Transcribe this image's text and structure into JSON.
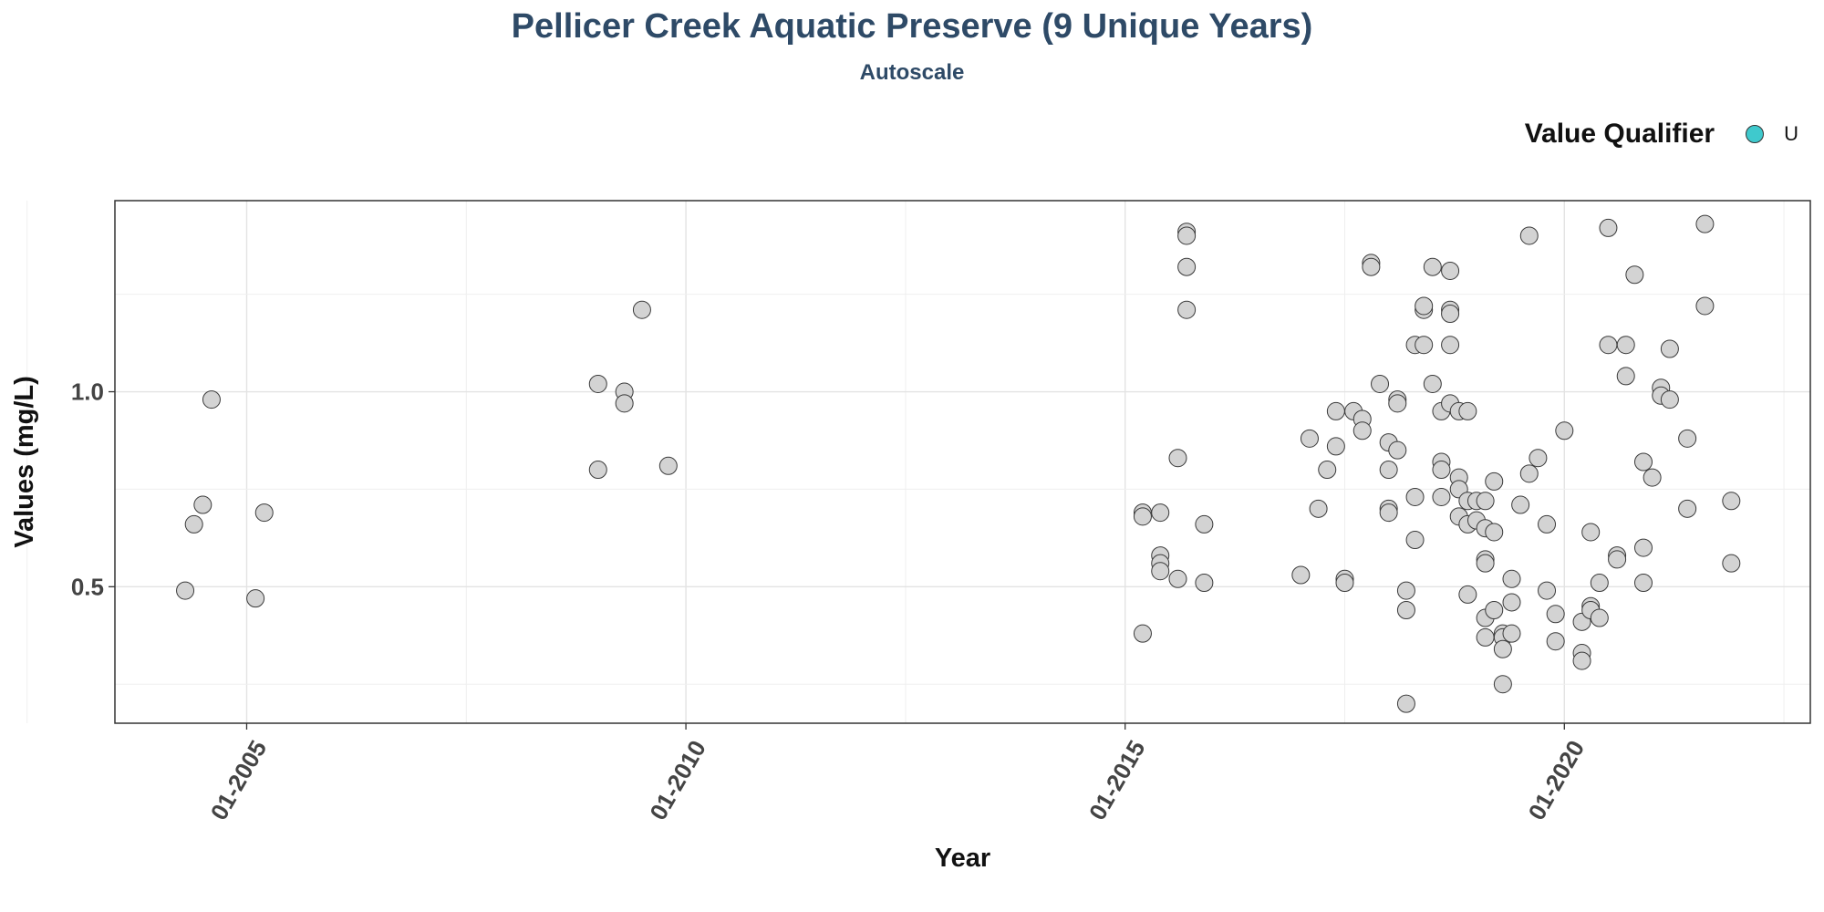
{
  "chart_data": {
    "type": "scatter",
    "title": "Pellicer Creek Aquatic Preserve (9 Unique Years)",
    "subtitle": "Autoscale",
    "xlabel": "Year",
    "ylabel": "Values (mg/L)",
    "x_ticks": [
      "01-2005",
      "01-2010",
      "01-2015",
      "01-2020"
    ],
    "x_tick_values": [
      2005.0,
      2010.0,
      2015.0,
      2020.0
    ],
    "y_ticks": [
      "0.5",
      "1.0"
    ],
    "y_tick_values": [
      0.5,
      1.0
    ],
    "xlim": [
      2003.5,
      2022.8
    ],
    "ylim": [
      0.15,
      1.49
    ],
    "grid": true,
    "legend": {
      "title": "Value Qualifier",
      "position": "top-right",
      "entries": [
        {
          "label": "U",
          "color": "#3fc9cd"
        }
      ]
    },
    "point_color": "#d3d3d3",
    "point_edge_color": "#3a3a3a",
    "points": [
      [
        2004.3,
        0.49
      ],
      [
        2004.4,
        0.66
      ],
      [
        2004.5,
        0.71
      ],
      [
        2004.6,
        0.98
      ],
      [
        2005.1,
        0.47
      ],
      [
        2005.2,
        0.69
      ],
      [
        2009.0,
        1.02
      ],
      [
        2009.0,
        0.8
      ],
      [
        2009.3,
        1.0
      ],
      [
        2009.3,
        0.97
      ],
      [
        2009.5,
        1.21
      ],
      [
        2009.8,
        0.81
      ],
      [
        2015.2,
        0.69
      ],
      [
        2015.2,
        0.68
      ],
      [
        2015.2,
        0.38
      ],
      [
        2015.4,
        0.69
      ],
      [
        2015.4,
        0.58
      ],
      [
        2015.4,
        0.56
      ],
      [
        2015.4,
        0.54
      ],
      [
        2015.6,
        0.83
      ],
      [
        2015.6,
        0.52
      ],
      [
        2015.7,
        1.41
      ],
      [
        2015.7,
        1.4
      ],
      [
        2015.7,
        1.32
      ],
      [
        2015.7,
        1.21
      ],
      [
        2015.9,
        0.66
      ],
      [
        2015.9,
        0.51
      ],
      [
        2017.0,
        0.53
      ],
      [
        2017.1,
        0.88
      ],
      [
        2017.2,
        0.7
      ],
      [
        2017.3,
        0.8
      ],
      [
        2017.4,
        0.86
      ],
      [
        2017.4,
        0.95
      ],
      [
        2017.5,
        0.52
      ],
      [
        2017.5,
        0.51
      ],
      [
        2017.6,
        0.95
      ],
      [
        2017.7,
        0.93
      ],
      [
        2017.7,
        0.9
      ],
      [
        2017.8,
        1.33
      ],
      [
        2017.8,
        1.32
      ],
      [
        2017.9,
        1.02
      ],
      [
        2018.0,
        0.87
      ],
      [
        2018.0,
        0.8
      ],
      [
        2018.0,
        0.7
      ],
      [
        2018.0,
        0.69
      ],
      [
        2018.1,
        0.98
      ],
      [
        2018.1,
        0.97
      ],
      [
        2018.1,
        0.85
      ],
      [
        2018.2,
        0.49
      ],
      [
        2018.2,
        0.44
      ],
      [
        2018.2,
        0.2
      ],
      [
        2018.3,
        1.12
      ],
      [
        2018.3,
        0.73
      ],
      [
        2018.3,
        0.62
      ],
      [
        2018.4,
        1.12
      ],
      [
        2018.4,
        1.21
      ],
      [
        2018.4,
        1.22
      ],
      [
        2018.5,
        1.32
      ],
      [
        2018.5,
        1.02
      ],
      [
        2018.6,
        0.95
      ],
      [
        2018.6,
        0.82
      ],
      [
        2018.6,
        0.8
      ],
      [
        2018.6,
        0.73
      ],
      [
        2018.7,
        1.21
      ],
      [
        2018.7,
        1.31
      ],
      [
        2018.7,
        1.2
      ],
      [
        2018.7,
        1.12
      ],
      [
        2018.7,
        0.97
      ],
      [
        2018.8,
        0.95
      ],
      [
        2018.8,
        0.78
      ],
      [
        2018.8,
        0.75
      ],
      [
        2018.8,
        0.68
      ],
      [
        2018.9,
        0.72
      ],
      [
        2018.9,
        0.66
      ],
      [
        2018.9,
        0.48
      ],
      [
        2018.9,
        0.95
      ],
      [
        2019.0,
        0.67
      ],
      [
        2019.0,
        0.72
      ],
      [
        2019.1,
        0.72
      ],
      [
        2019.1,
        0.65
      ],
      [
        2019.1,
        0.57
      ],
      [
        2019.1,
        0.56
      ],
      [
        2019.1,
        0.42
      ],
      [
        2019.1,
        0.37
      ],
      [
        2019.2,
        0.77
      ],
      [
        2019.2,
        0.64
      ],
      [
        2019.2,
        0.44
      ],
      [
        2019.3,
        0.38
      ],
      [
        2019.3,
        0.37
      ],
      [
        2019.3,
        0.34
      ],
      [
        2019.3,
        0.25
      ],
      [
        2019.4,
        0.52
      ],
      [
        2019.4,
        0.46
      ],
      [
        2019.4,
        0.38
      ],
      [
        2019.5,
        0.71
      ],
      [
        2019.6,
        1.4
      ],
      [
        2019.6,
        0.79
      ],
      [
        2019.7,
        0.83
      ],
      [
        2019.8,
        0.66
      ],
      [
        2019.8,
        0.49
      ],
      [
        2019.9,
        0.43
      ],
      [
        2019.9,
        0.36
      ],
      [
        2020.0,
        0.9
      ],
      [
        2020.2,
        0.41
      ],
      [
        2020.2,
        0.33
      ],
      [
        2020.2,
        0.31
      ],
      [
        2020.3,
        0.64
      ],
      [
        2020.3,
        0.45
      ],
      [
        2020.3,
        0.44
      ],
      [
        2020.4,
        0.51
      ],
      [
        2020.4,
        0.42
      ],
      [
        2020.5,
        1.42
      ],
      [
        2020.5,
        1.12
      ],
      [
        2020.6,
        0.58
      ],
      [
        2020.6,
        0.57
      ],
      [
        2020.7,
        1.12
      ],
      [
        2020.7,
        1.04
      ],
      [
        2020.8,
        1.3
      ],
      [
        2020.9,
        0.82
      ],
      [
        2020.9,
        0.6
      ],
      [
        2020.9,
        0.51
      ],
      [
        2021.0,
        0.78
      ],
      [
        2021.1,
        1.01
      ],
      [
        2021.1,
        0.99
      ],
      [
        2021.2,
        1.11
      ],
      [
        2021.2,
        0.98
      ],
      [
        2021.4,
        0.7
      ],
      [
        2021.4,
        0.88
      ],
      [
        2021.6,
        1.43
      ],
      [
        2021.6,
        1.22
      ],
      [
        2021.9,
        0.72
      ],
      [
        2021.9,
        0.56
      ]
    ]
  }
}
